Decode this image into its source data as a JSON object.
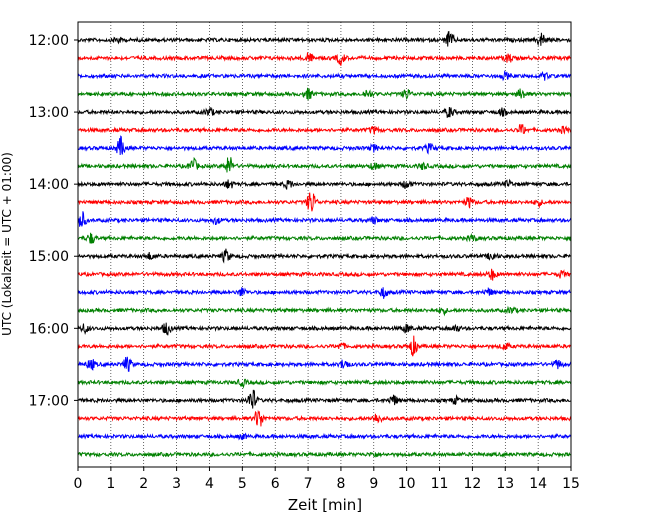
{
  "chart_data": {
    "type": "line",
    "xlabel": "Zeit  [min]",
    "ylabel": "UTC (Lokalzeit = UTC + 01:00)",
    "xlim": [
      0,
      15
    ],
    "x_ticks": [
      "0",
      "1",
      "2",
      "3",
      "4",
      "5",
      "6",
      "7",
      "8",
      "9",
      "10",
      "11",
      "12",
      "13",
      "14",
      "15"
    ],
    "y_ticks": [
      {
        "label": "12:00",
        "row": 0
      },
      {
        "label": "13:00",
        "row": 4
      },
      {
        "label": "14:00",
        "row": 8
      },
      {
        "label": "15:00",
        "row": 12
      },
      {
        "label": "16:00",
        "row": 16
      },
      {
        "label": "17:00",
        "row": 20
      }
    ],
    "grid": "vertical dotted",
    "row_minutes": 15,
    "colors": [
      "#000000",
      "#ff0000",
      "#0000ff",
      "#008000"
    ],
    "rows": [
      {
        "start": "12:00",
        "events": [
          {
            "t": 11.3,
            "amp": 8
          },
          {
            "t": 14.1,
            "amp": 7
          },
          {
            "t": 1.2,
            "amp": 3
          }
        ]
      },
      {
        "start": "12:15",
        "events": [
          {
            "t": 7.0,
            "amp": 5
          },
          {
            "t": 8.0,
            "amp": 6
          },
          {
            "t": 13.1,
            "amp": 4
          }
        ]
      },
      {
        "start": "12:30",
        "events": [
          {
            "t": 13.0,
            "amp": 3
          },
          {
            "t": 14.2,
            "amp": 3
          }
        ]
      },
      {
        "start": "12:45",
        "events": [
          {
            "t": 7.0,
            "amp": 5
          },
          {
            "t": 8.8,
            "amp": 4
          },
          {
            "t": 10.0,
            "amp": 5
          },
          {
            "t": 13.5,
            "amp": 5
          }
        ]
      },
      {
        "start": "13:00",
        "events": [
          {
            "t": 4.0,
            "amp": 4
          },
          {
            "t": 11.3,
            "amp": 5
          },
          {
            "t": 12.9,
            "amp": 3
          }
        ]
      },
      {
        "start": "13:15",
        "events": [
          {
            "t": 9.0,
            "amp": 3
          },
          {
            "t": 13.5,
            "amp": 5
          },
          {
            "t": 14.8,
            "amp": 3
          }
        ]
      },
      {
        "start": "13:30",
        "events": [
          {
            "t": 1.3,
            "amp": 10
          },
          {
            "t": 9.0,
            "amp": 3
          },
          {
            "t": 10.7,
            "amp": 4
          }
        ]
      },
      {
        "start": "13:45",
        "events": [
          {
            "t": 3.5,
            "amp": 7
          },
          {
            "t": 4.6,
            "amp": 9
          },
          {
            "t": 9.0,
            "amp": 3
          },
          {
            "t": 10.5,
            "amp": 3
          }
        ]
      },
      {
        "start": "14:00",
        "events": [
          {
            "t": 4.6,
            "amp": 4
          },
          {
            "t": 6.4,
            "amp": 4
          },
          {
            "t": 10.0,
            "amp": 4
          },
          {
            "t": 13.1,
            "amp": 3
          }
        ]
      },
      {
        "start": "14:15",
        "events": [
          {
            "t": 7.1,
            "amp": 12
          },
          {
            "t": 11.9,
            "amp": 5
          },
          {
            "t": 14.0,
            "amp": 3
          }
        ]
      },
      {
        "start": "14:30",
        "events": [
          {
            "t": 0.1,
            "amp": 9
          },
          {
            "t": 4.2,
            "amp": 3
          },
          {
            "t": 9.0,
            "amp": 3
          }
        ]
      },
      {
        "start": "14:45",
        "events": [
          {
            "t": 0.4,
            "amp": 5
          },
          {
            "t": 12.0,
            "amp": 3
          }
        ]
      },
      {
        "start": "15:00",
        "events": [
          {
            "t": 4.5,
            "amp": 6
          },
          {
            "t": 12.6,
            "amp": 4
          },
          {
            "t": 2.2,
            "amp": 3
          }
        ]
      },
      {
        "start": "15:15",
        "events": [
          {
            "t": 12.6,
            "amp": 5
          },
          {
            "t": 14.7,
            "amp": 3
          }
        ]
      },
      {
        "start": "15:30",
        "events": [
          {
            "t": 5.0,
            "amp": 4
          },
          {
            "t": 9.3,
            "amp": 5
          },
          {
            "t": 12.5,
            "amp": 3
          }
        ]
      },
      {
        "start": "15:45",
        "events": [
          {
            "t": 11.1,
            "amp": 3
          },
          {
            "t": 13.2,
            "amp": 3
          }
        ]
      },
      {
        "start": "16:00",
        "events": [
          {
            "t": 2.7,
            "amp": 6
          },
          {
            "t": 0.2,
            "amp": 4
          },
          {
            "t": 10.0,
            "amp": 4
          },
          {
            "t": 11.5,
            "amp": 3
          }
        ]
      },
      {
        "start": "16:15",
        "events": [
          {
            "t": 10.2,
            "amp": 9
          },
          {
            "t": 8.0,
            "amp": 3
          },
          {
            "t": 13.0,
            "amp": 3
          }
        ]
      },
      {
        "start": "16:30",
        "events": [
          {
            "t": 1.5,
            "amp": 7
          },
          {
            "t": 0.4,
            "amp": 5
          },
          {
            "t": 8.1,
            "amp": 5
          },
          {
            "t": 14.6,
            "amp": 4
          }
        ]
      },
      {
        "start": "16:45",
        "events": [
          {
            "t": 5.0,
            "amp": 3
          }
        ]
      },
      {
        "start": "17:00",
        "events": [
          {
            "t": 5.3,
            "amp": 11
          },
          {
            "t": 9.6,
            "amp": 5
          },
          {
            "t": 11.5,
            "amp": 3
          }
        ]
      },
      {
        "start": "17:15",
        "events": [
          {
            "t": 5.5,
            "amp": 10
          },
          {
            "t": 9.1,
            "amp": 5
          }
        ]
      },
      {
        "start": "17:30",
        "events": [
          {
            "t": 5.0,
            "amp": 2
          }
        ]
      },
      {
        "start": "17:45",
        "events": [
          {
            "t": 9.0,
            "amp": 2
          }
        ]
      }
    ]
  }
}
